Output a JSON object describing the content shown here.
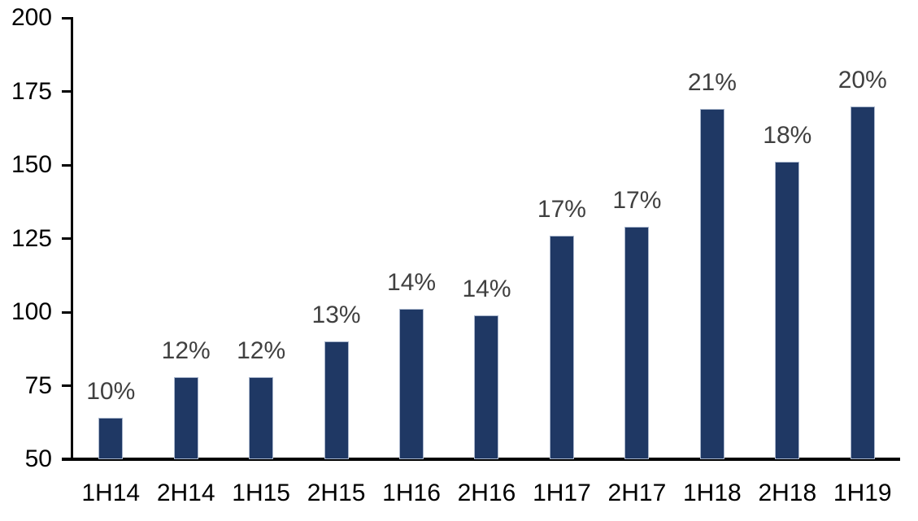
{
  "chart_data": {
    "type": "bar",
    "title": "",
    "categories": [
      "1H14",
      "2H14",
      "1H15",
      "2H15",
      "1H16",
      "2H16",
      "1H17",
      "2H17",
      "1H18",
      "2H18",
      "1H19"
    ],
    "values": [
      64,
      78,
      78,
      90,
      101,
      99,
      126,
      129,
      169,
      151,
      170
    ],
    "bar_labels": [
      "10%",
      "12%",
      "12%",
      "13%",
      "14%",
      "14%",
      "17%",
      "17%",
      "21%",
      "18%",
      "20%"
    ],
    "yticks": [
      200,
      175,
      150,
      125,
      100,
      75,
      50
    ],
    "ylim": [
      50,
      200
    ],
    "xlabel": "",
    "ylabel": "",
    "grid": false,
    "legend": false,
    "colors": {
      "bar_fill": "#1F3864",
      "bar_border": "#A9B6CC",
      "value_label": "#404040",
      "axis": "#000000",
      "background": "#FFFFFF"
    }
  }
}
